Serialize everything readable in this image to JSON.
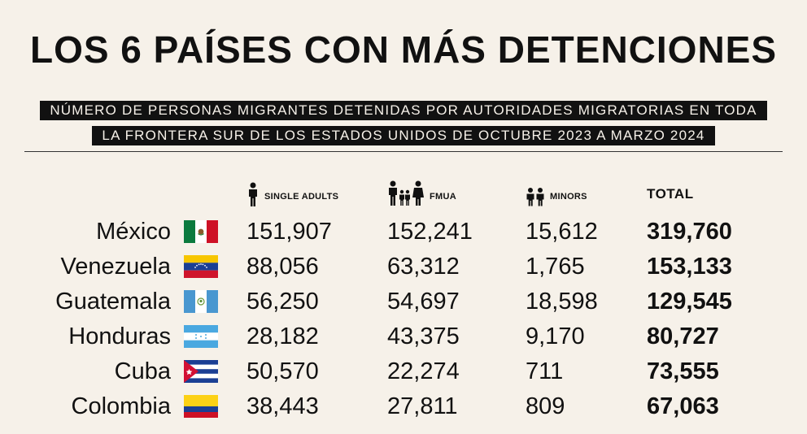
{
  "title": "LOS 6 PAÍSES CON MÁS DETENCIONES",
  "subtitle_line1": "NÚMERO DE PERSONAS MIGRANTES DETENIDAS POR AUTORIDADES MIGRATORIAS EN TODA",
  "subtitle_line2": "LA FRONTERA SUR DE LOS ESTADOS UNIDOS DE OCTUBRE 2023 A MARZO 2024",
  "chart_data": {
    "type": "table",
    "columns": [
      {
        "label": "SINGLE ADULTS",
        "icon": "single-adult-icon"
      },
      {
        "label": "FMUA",
        "icon": "family-icon"
      },
      {
        "label": "MINORS",
        "icon": "minors-icon"
      },
      {
        "label": "TOTAL",
        "icon": ""
      }
    ],
    "rows": [
      {
        "country": "México",
        "flag": "mexico-flag",
        "values": [
          "151,907",
          "152,241",
          "15,612",
          "319,760"
        ]
      },
      {
        "country": "Venezuela",
        "flag": "venezuela-flag",
        "values": [
          "88,056",
          "63,312",
          "1,765",
          "153,133"
        ]
      },
      {
        "country": "Guatemala",
        "flag": "guatemala-flag",
        "values": [
          "56,250",
          "54,697",
          "18,598",
          "129,545"
        ]
      },
      {
        "country": "Honduras",
        "flag": "honduras-flag",
        "values": [
          "28,182",
          "43,375",
          "9,170",
          "80,727"
        ]
      },
      {
        "country": "Cuba",
        "flag": "cuba-flag",
        "values": [
          "50,570",
          "22,274",
          "711",
          "73,555"
        ]
      },
      {
        "country": "Colombia",
        "flag": "colombia-flag",
        "values": [
          "38,443",
          "27,811",
          "809",
          "67,063"
        ]
      }
    ]
  },
  "colors": {
    "background": "#f6f1e9",
    "ink": "#111111"
  }
}
